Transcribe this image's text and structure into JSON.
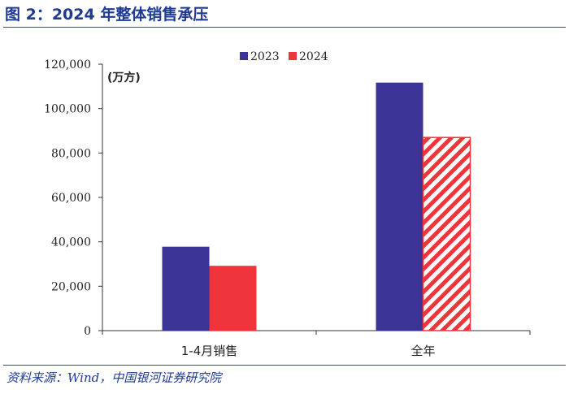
{
  "figure": {
    "title": "图 2：2024 年整体销售承压",
    "source": "资料来源：Wind，中国银河证券研究院"
  },
  "chart_data": {
    "type": "bar",
    "title": "",
    "ylabel": "(万方)",
    "xlabel": "",
    "categories": [
      "1-4月销售",
      "全年"
    ],
    "series": [
      {
        "name": "2023",
        "values": [
          37800,
          111700
        ],
        "color": "#3b3496",
        "pattern": "solid"
      },
      {
        "name": "2024",
        "values": [
          29200,
          87000
        ],
        "color": "#f0343c",
        "pattern": "solid-then-hatched"
      }
    ],
    "ylim": [
      0,
      120000
    ],
    "yticks": [
      "0",
      "20,000",
      "40,000",
      "60,000",
      "80,000",
      "100,000",
      "120,000"
    ],
    "ytick_values": [
      0,
      20000,
      40000,
      60000,
      80000,
      100000,
      120000
    ],
    "legend": "top-center",
    "grid": false
  }
}
